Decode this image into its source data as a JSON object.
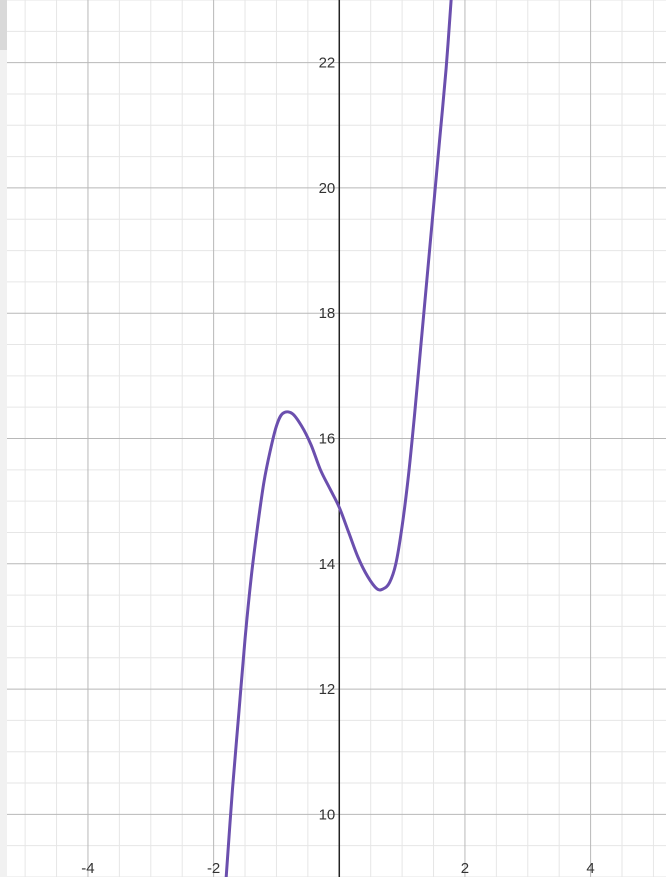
{
  "chart_data": {
    "type": "line",
    "title": "",
    "xlabel": "",
    "ylabel": "",
    "xlim": [
      -5.4,
      5.2
    ],
    "ylim": [
      9.0,
      23.0
    ],
    "x_major_step": 2,
    "y_major_step": 2,
    "minor_subdivisions": 4,
    "grid": true,
    "x_tick_labels": [
      "-4",
      "-2",
      "2",
      "4"
    ],
    "y_tick_labels": [
      "10",
      "12",
      "14",
      "16",
      "18",
      "20",
      "22"
    ],
    "series": [
      {
        "color": "#6b4fae",
        "points": [
          {
            "x": -1.8,
            "y": 9.0
          },
          {
            "x": -1.7,
            "y": 10.4
          },
          {
            "x": -1.6,
            "y": 11.6
          },
          {
            "x": -1.5,
            "y": 12.8
          },
          {
            "x": -1.4,
            "y": 13.8
          },
          {
            "x": -1.3,
            "y": 14.6
          },
          {
            "x": -1.2,
            "y": 15.3
          },
          {
            "x": -1.1,
            "y": 15.8
          },
          {
            "x": -1.0,
            "y": 16.2
          },
          {
            "x": -0.9,
            "y": 16.4
          },
          {
            "x": -0.75,
            "y": 16.4
          },
          {
            "x": -0.6,
            "y": 16.2
          },
          {
            "x": -0.45,
            "y": 15.9
          },
          {
            "x": -0.3,
            "y": 15.5
          },
          {
            "x": -0.15,
            "y": 15.2
          },
          {
            "x": 0.0,
            "y": 14.9
          },
          {
            "x": 0.15,
            "y": 14.5
          },
          {
            "x": 0.3,
            "y": 14.1
          },
          {
            "x": 0.45,
            "y": 13.8
          },
          {
            "x": 0.6,
            "y": 13.6
          },
          {
            "x": 0.7,
            "y": 13.6
          },
          {
            "x": 0.8,
            "y": 13.7
          },
          {
            "x": 0.9,
            "y": 14.0
          },
          {
            "x": 1.0,
            "y": 14.6
          },
          {
            "x": 1.1,
            "y": 15.4
          },
          {
            "x": 1.2,
            "y": 16.4
          },
          {
            "x": 1.3,
            "y": 17.5
          },
          {
            "x": 1.4,
            "y": 18.6
          },
          {
            "x": 1.5,
            "y": 19.7
          },
          {
            "x": 1.6,
            "y": 20.8
          },
          {
            "x": 1.7,
            "y": 21.9
          },
          {
            "x": 1.78,
            "y": 23.0
          }
        ]
      }
    ]
  },
  "colors": {
    "background": "#ffffff",
    "minor_grid": "#e6e6e6",
    "major_grid": "#b8b8b8",
    "axis": "#222222",
    "tick_text": "#333333",
    "curve": "#6b4fae"
  }
}
